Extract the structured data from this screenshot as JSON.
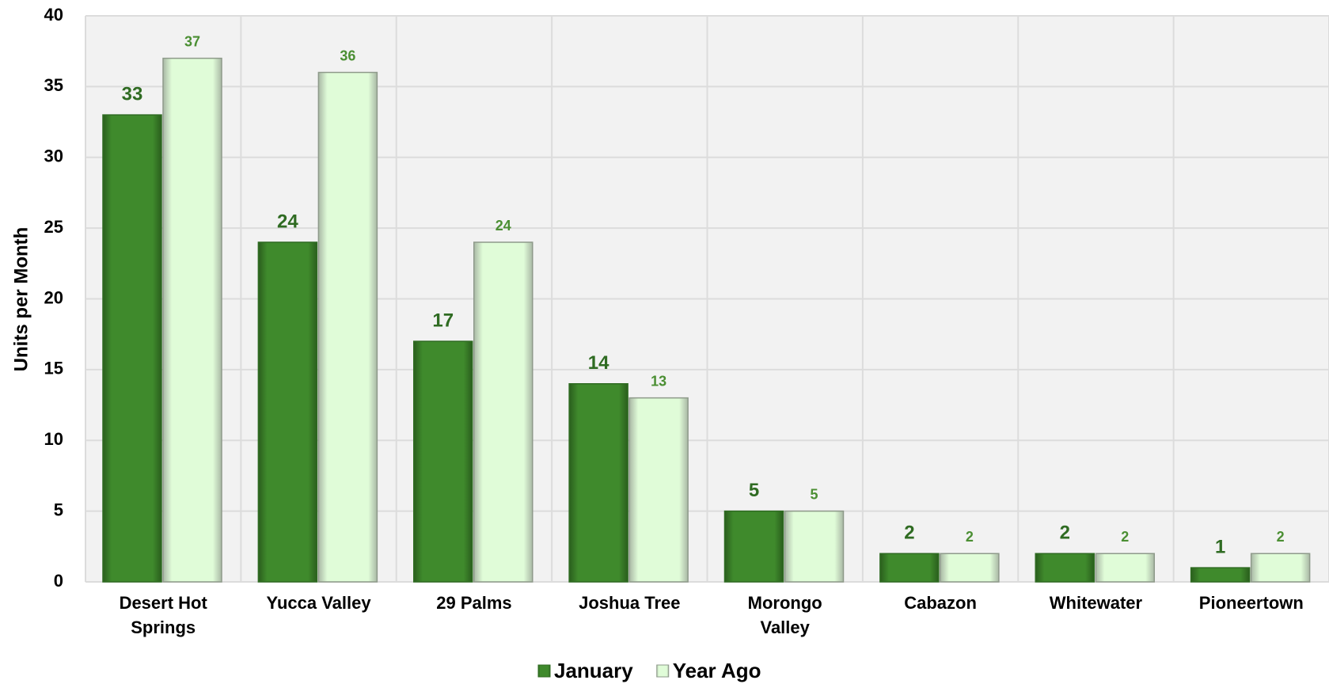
{
  "chart_data": {
    "type": "bar",
    "categories": [
      "Desert Hot Springs",
      "Yucca Valley",
      "29 Palms",
      "Joshua Tree",
      "Morongo Valley",
      "Cabazon",
      "Whitewater",
      "Pioneertown"
    ],
    "series": [
      {
        "name": "January",
        "color": "#3f8a2c",
        "values": [
          33,
          24,
          17,
          14,
          5,
          2,
          2,
          1
        ]
      },
      {
        "name": "Year Ago",
        "color": "#e0fcd8",
        "values": [
          37,
          36,
          24,
          13,
          5,
          2,
          2,
          2
        ]
      }
    ],
    "y_label": "Units per Month",
    "ylim": [
      0,
      40
    ],
    "yticks": [
      0,
      5,
      10,
      15,
      20,
      25,
      30,
      35,
      40
    ],
    "grid": true,
    "legend": "bottom"
  }
}
